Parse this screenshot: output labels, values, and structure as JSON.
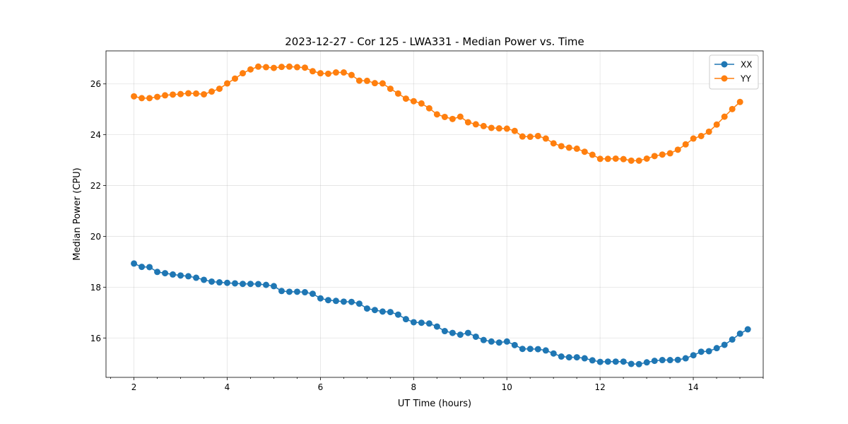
{
  "chart_data": {
    "type": "line",
    "title": "2023-12-27 - Cor 125 - LWA331 - Median Power vs. Time",
    "xlabel": "UT Time (hours)",
    "ylabel": "Median Power (CPU)",
    "xlim": [
      1.4,
      15.5
    ],
    "ylim": [
      14.45,
      27.3
    ],
    "xticks": [
      2,
      4,
      6,
      8,
      10,
      12,
      14
    ],
    "yticks": [
      16,
      18,
      20,
      22,
      24,
      26
    ],
    "xminor_step": 0.5,
    "grid": true,
    "legend_position": "top-right",
    "x_start": 2.0,
    "x_step": 0.1667,
    "series": [
      {
        "name": "XX",
        "color": "#1f77b4",
        "marker": "circle",
        "values": [
          18.93,
          18.8,
          18.79,
          18.6,
          18.55,
          18.5,
          18.46,
          18.43,
          18.37,
          18.29,
          18.22,
          18.19,
          18.17,
          18.15,
          18.13,
          18.13,
          18.12,
          18.09,
          18.04,
          17.85,
          17.82,
          17.82,
          17.8,
          17.74,
          17.56,
          17.49,
          17.46,
          17.43,
          17.42,
          17.35,
          17.16,
          17.1,
          17.04,
          17.02,
          16.92,
          16.74,
          16.62,
          16.6,
          16.57,
          16.45,
          16.27,
          16.2,
          16.13,
          16.2,
          16.05,
          15.92,
          15.86,
          15.82,
          15.86,
          15.72,
          15.57,
          15.57,
          15.56,
          15.51,
          15.39,
          15.27,
          15.24,
          15.24,
          15.2,
          15.12,
          15.06,
          15.07,
          15.07,
          15.07,
          14.98,
          14.97,
          15.04,
          15.1,
          15.13,
          15.13,
          15.14,
          15.2,
          15.32,
          15.46,
          15.48,
          15.6,
          15.73,
          15.94,
          16.17,
          16.34
        ]
      },
      {
        "name": "YY",
        "color": "#ff7f0e",
        "marker": "circle",
        "values": [
          25.51,
          25.44,
          25.44,
          25.49,
          25.55,
          25.58,
          25.6,
          25.63,
          25.62,
          25.59,
          25.7,
          25.81,
          26.02,
          26.21,
          26.42,
          26.57,
          26.68,
          26.66,
          26.63,
          26.67,
          26.68,
          26.66,
          26.64,
          26.5,
          26.42,
          26.4,
          26.45,
          26.45,
          26.35,
          26.13,
          26.12,
          26.03,
          26.02,
          25.81,
          25.62,
          25.42,
          25.32,
          25.23,
          25.04,
          24.8,
          24.7,
          24.62,
          24.71,
          24.49,
          24.41,
          24.34,
          24.27,
          24.25,
          24.24,
          24.15,
          23.93,
          23.92,
          23.95,
          23.85,
          23.66,
          23.55,
          23.49,
          23.45,
          23.33,
          23.21,
          23.05,
          23.05,
          23.06,
          23.04,
          22.98,
          22.98,
          23.06,
          23.16,
          23.22,
          23.27,
          23.41,
          23.62,
          23.85,
          23.95,
          24.12,
          24.4,
          24.71,
          25.01,
          25.29
        ]
      }
    ]
  }
}
